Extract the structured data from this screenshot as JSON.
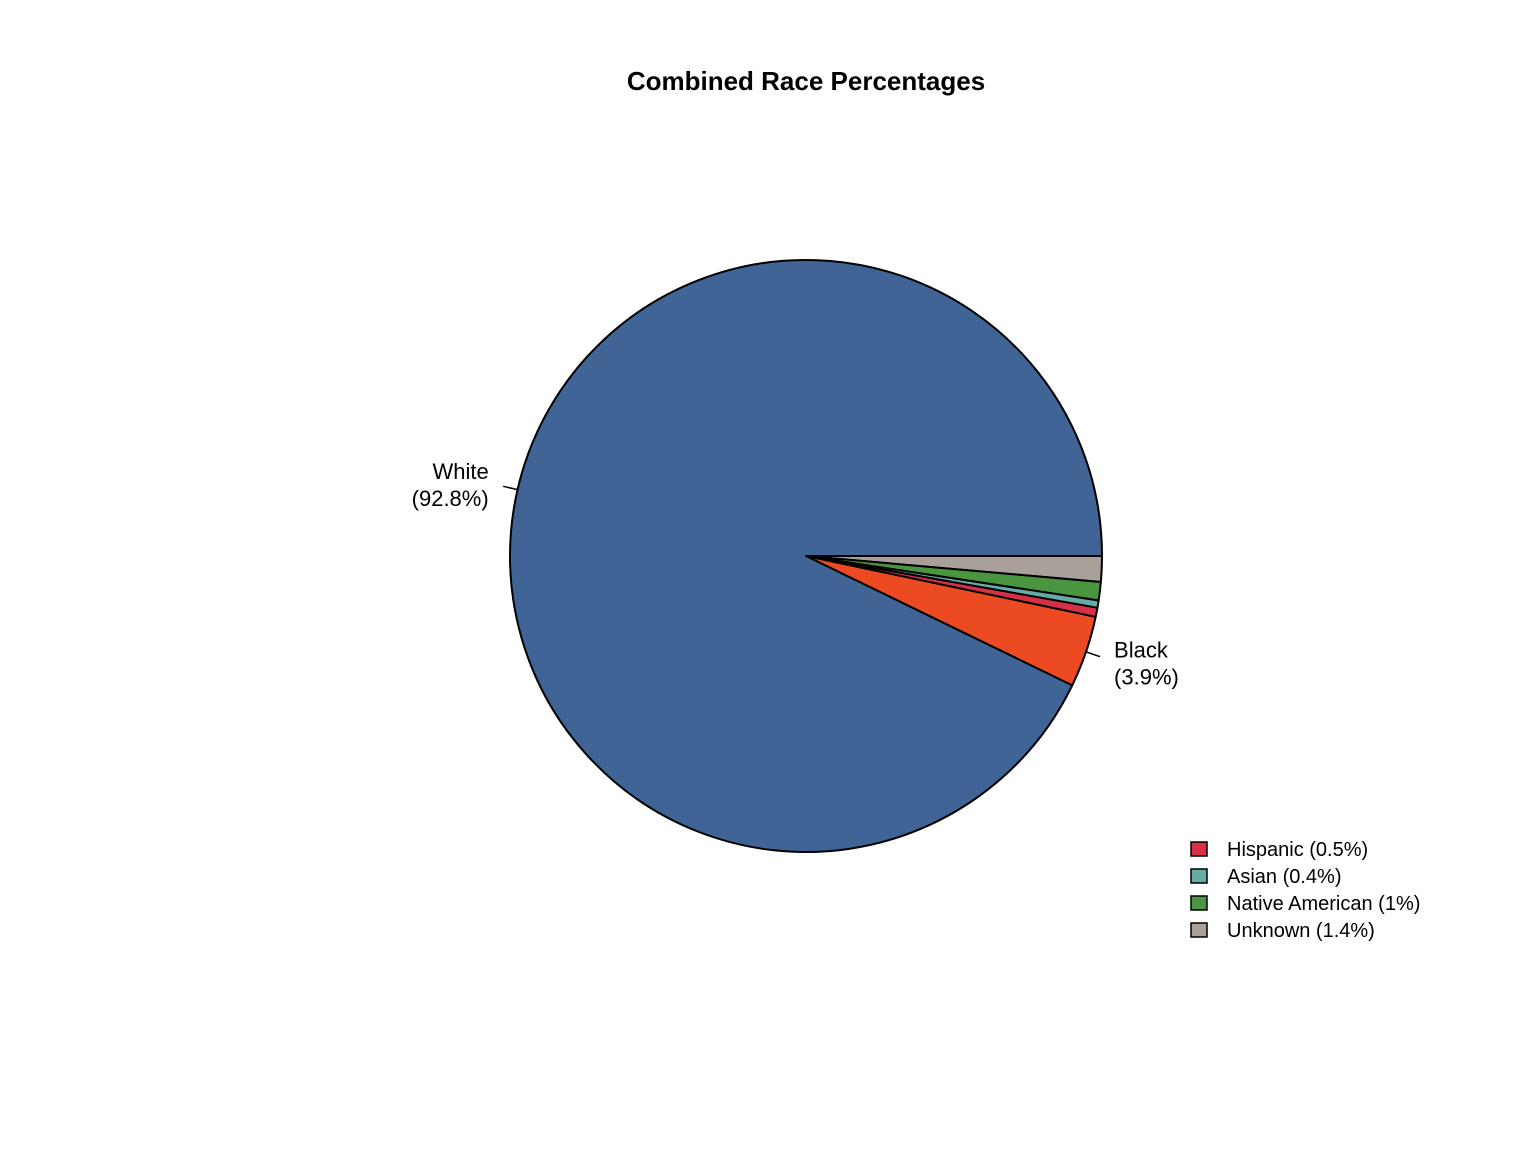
{
  "chart_data": {
    "type": "pie",
    "title": "Combined Race Percentages",
    "slices": [
      {
        "label": "Unknown",
        "value": 1.4,
        "display": "(1.4%)",
        "color": "#aaa09a",
        "labeled": false
      },
      {
        "label": "Native American",
        "value": 1.0,
        "display": "(1%)",
        "color": "#4a953f",
        "labeled": false
      },
      {
        "label": "Asian",
        "value": 0.4,
        "display": "(0.4%)",
        "color": "#67aba5",
        "labeled": false
      },
      {
        "label": "Hispanic",
        "value": 0.5,
        "display": "(0.5%)",
        "color": "#d9304a",
        "labeled": false
      },
      {
        "label": "Black",
        "value": 3.9,
        "display": "(3.9%)",
        "color": "#ec4a23",
        "labeled": true
      },
      {
        "label": "White",
        "value": 92.8,
        "display": "(92.8%)",
        "color": "#3f6495",
        "labeled": true
      }
    ],
    "legend": {
      "position": "bottom-right",
      "entries": [
        {
          "text": "Hispanic (0.5%)",
          "color": "#d9304a"
        },
        {
          "text": "Asian (0.4%)",
          "color": "#67aba5"
        },
        {
          "text": "Native American (1%)",
          "color": "#4a953f"
        },
        {
          "text": "Unknown (1.4%)",
          "color": "#aaa09a"
        }
      ]
    }
  }
}
